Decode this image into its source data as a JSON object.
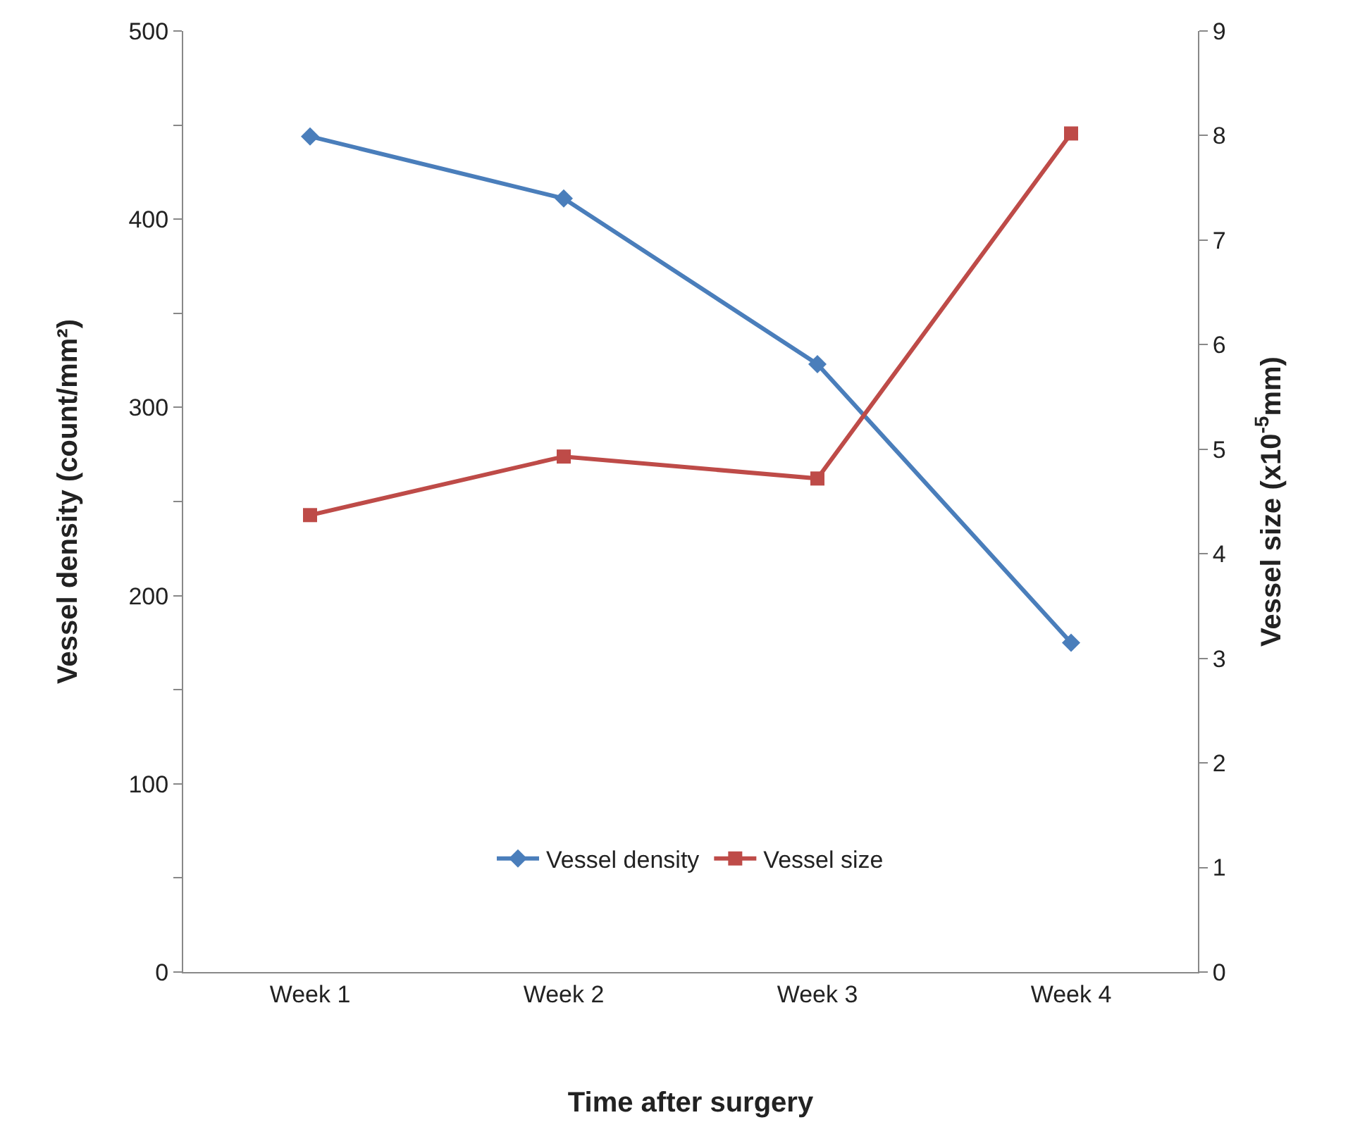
{
  "chart_data": {
    "type": "line",
    "xlabel": "Time after surgery",
    "ylabel": "Vessel density (count/mm²)",
    "y2label": "Vessel size (x10$^{-5}$mm)",
    "categories": [
      "Week 1",
      "Week 2",
      "Week 3",
      "Week 4"
    ],
    "series": [
      {
        "name": "Vessel density",
        "color": "#4a7ebb",
        "values": [
          444,
          411,
          323,
          175
        ],
        "marker": "diamond"
      },
      {
        "name": "Vessel size",
        "color": "#be4b48",
        "values": [
          4.37,
          4.93,
          4.72,
          8.02
        ],
        "marker": "square",
        "axis": "y2"
      }
    ],
    "ylim": [
      0,
      500
    ],
    "yticks": [
      0,
      {
        "value": 50,
        "label": null
      },
      100,
      {
        "value": 150,
        "label": null
      },
      200,
      {
        "value": 250,
        "label": null
      },
      300,
      {
        "value": 350,
        "label": null
      },
      400,
      {
        "value": 450,
        "label": null
      },
      500
    ],
    "y2lim": [
      0,
      9
    ],
    "y2ticks": [
      0,
      1,
      2,
      3,
      4,
      5,
      6,
      7,
      8,
      9
    ],
    "grid": false,
    "legend": "bottom",
    "line_style": "solid"
  }
}
